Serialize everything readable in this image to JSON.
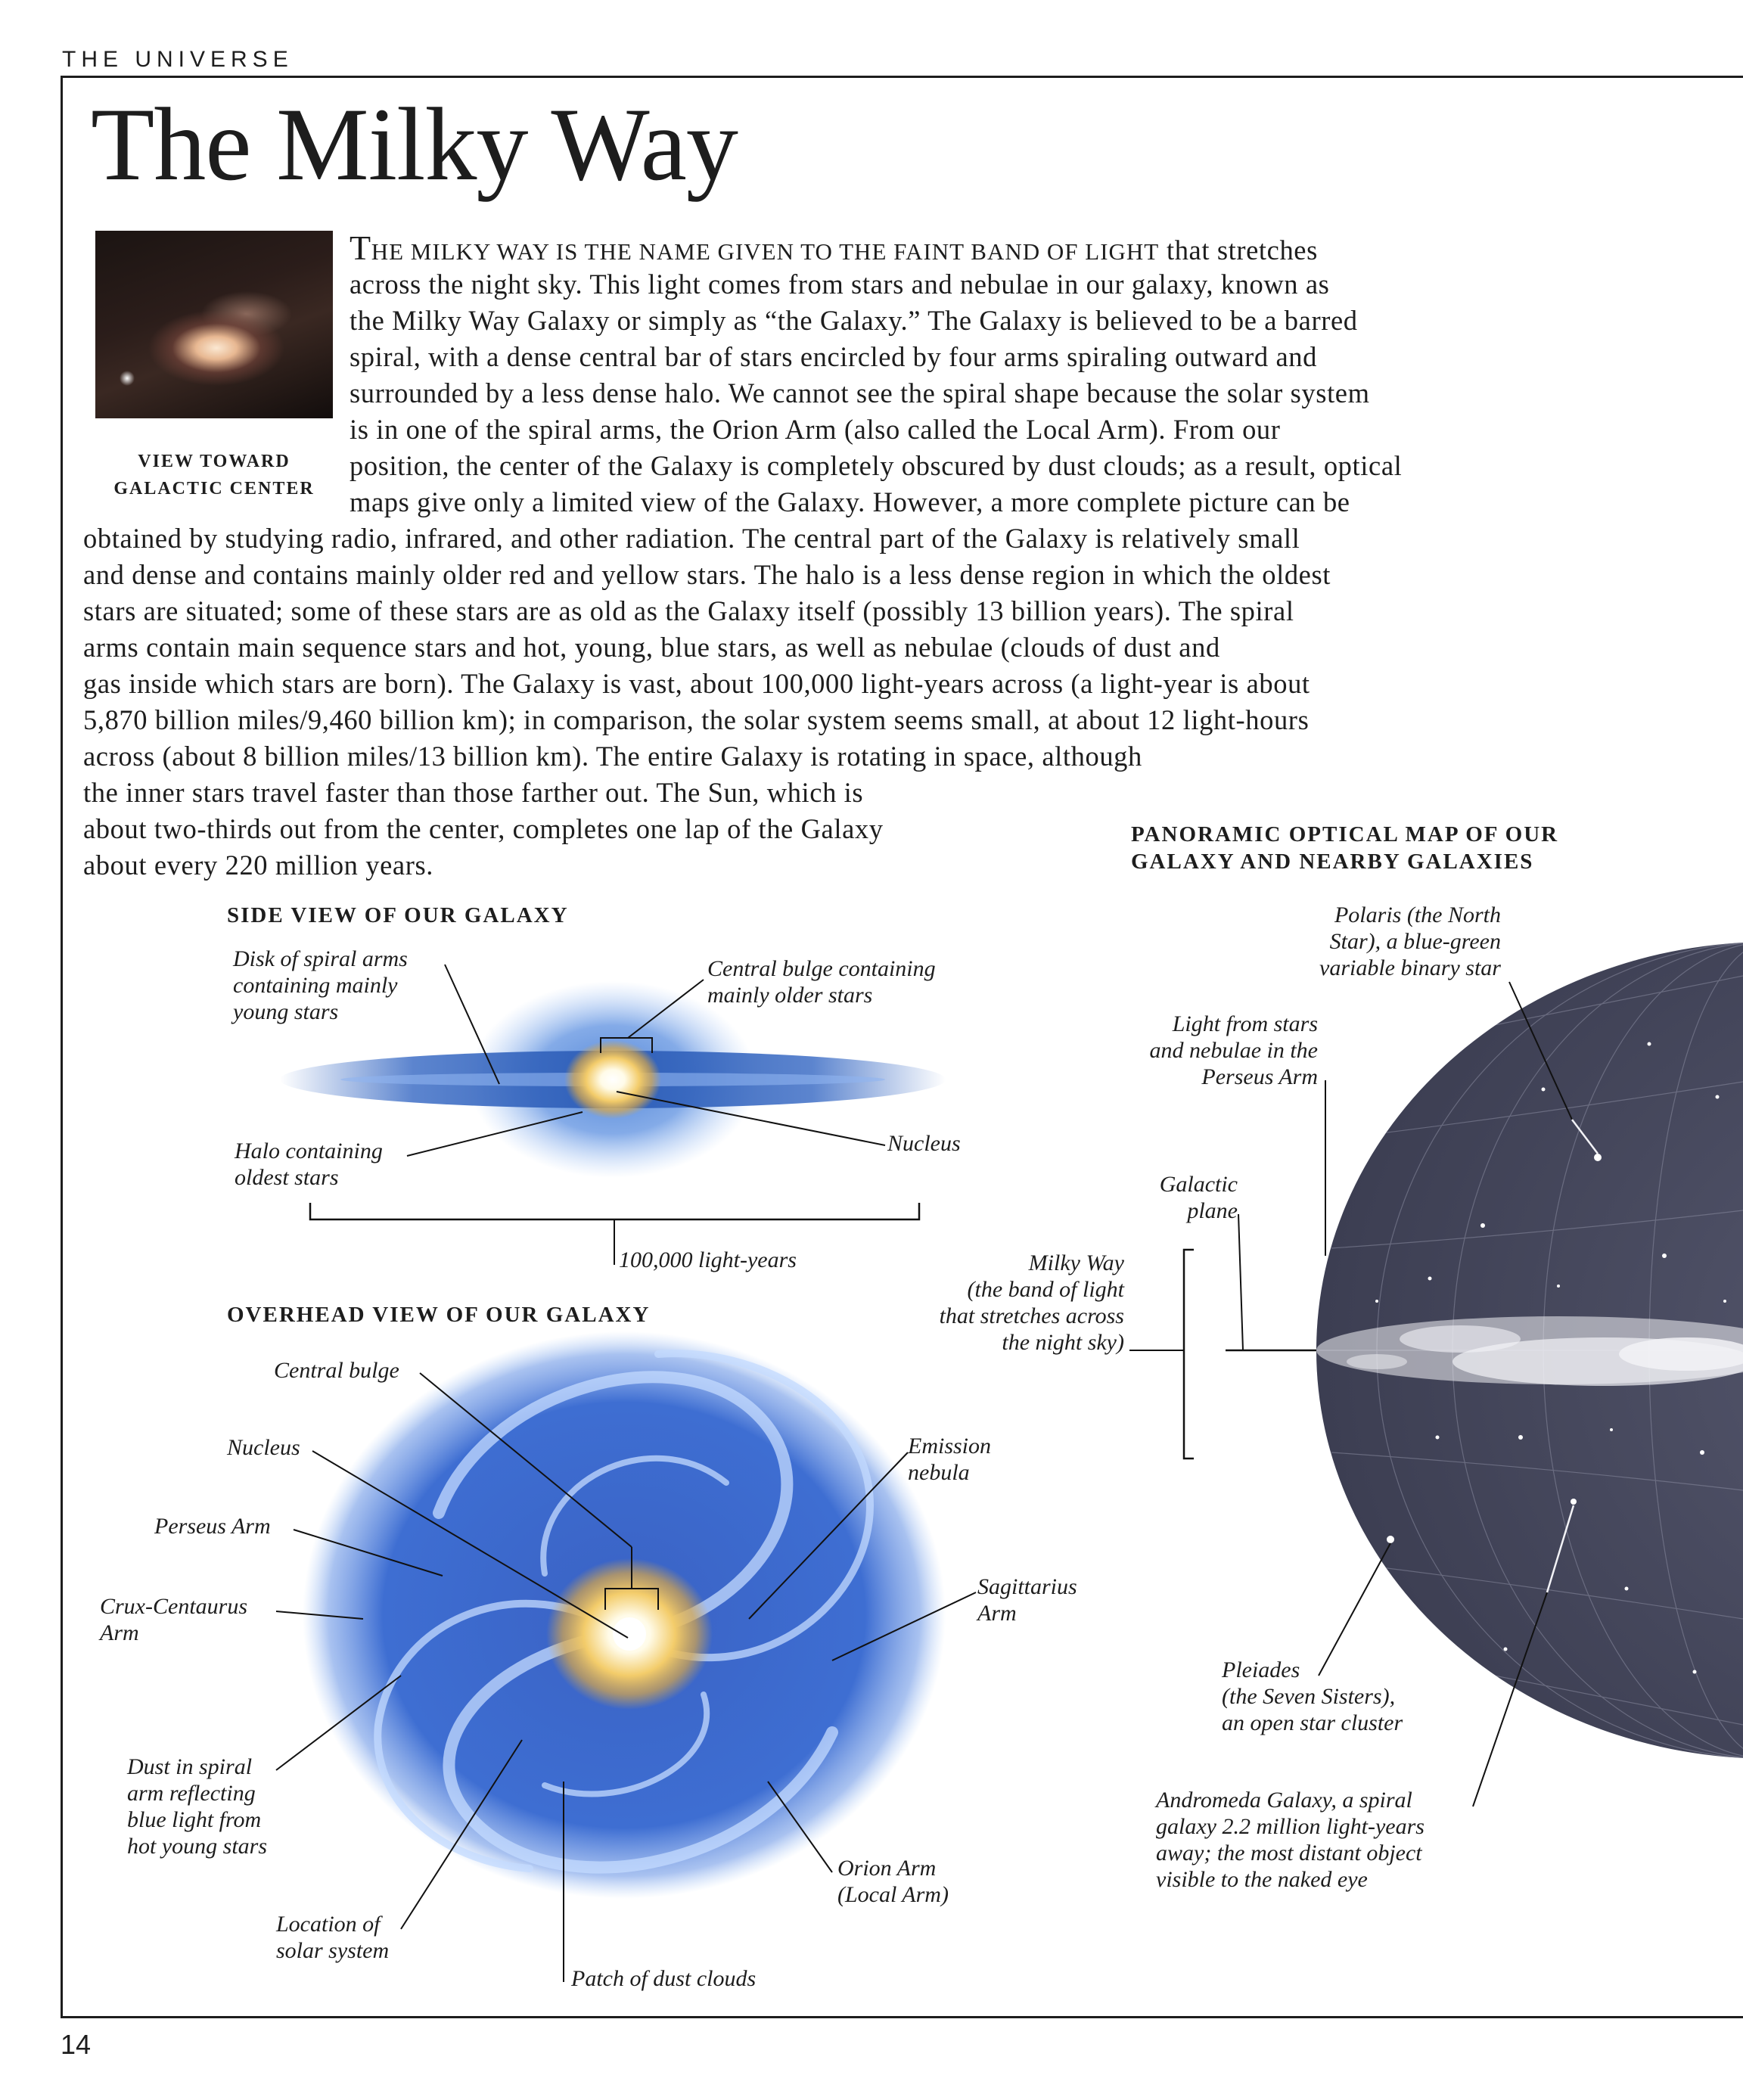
{
  "header": {
    "section": "THE UNIVERSE",
    "page_title": "The Milky Way",
    "page_number": "14"
  },
  "photo": {
    "caption_line1": "VIEW TOWARD",
    "caption_line2": "GALACTIC CENTER"
  },
  "intro": {
    "first_line_smallcaps_lead": "T",
    "first_line_smallcaps": "HE MILKY WAY IS THE NAME GIVEN TO THE FAINT BAND OF LIGHT",
    "first_line_rest": " that stretches",
    "lines": [
      "across the night sky. This light comes from stars and nebulae in our galaxy, known as",
      "the Milky Way Galaxy or simply as “the Galaxy.” The Galaxy is believed to be a barred",
      "spiral, with a dense central bar of stars encircled by four arms spiraling outward and",
      "surrounded by a less dense halo. We cannot see the spiral shape because the solar system",
      "is in one of the spiral arms, the Orion Arm (also called the Local Arm). From our",
      "position, the center of the Galaxy is completely obscured by dust clouds; as a result, optical",
      "maps give only a limited view of the Galaxy. However, a more complete picture can be",
      "obtained by studying radio, infrared, and other radiation. The central part of the Galaxy is relatively small",
      "and dense and contains mainly older red and yellow stars. The halo is a less dense region in which the oldest",
      "stars are situated; some of these stars are as old as the Galaxy itself (possibly 13 billion years). The spiral",
      "arms contain main sequence stars and hot, young, blue stars, as well as nebulae (clouds of dust and",
      "gas inside which stars are born). The Galaxy is vast, about 100,000 light-years across (a light-year is about",
      "5,870 billion miles/9,460 billion km); in comparison, the solar system seems small, at about 12 light-hours",
      "across (about 8 billion miles/13 billion km). The entire Galaxy is rotating in space, although",
      "the inner stars travel faster than those farther out. The Sun, which is",
      "about two-thirds out from the center, completes one lap of the Galaxy",
      "about every 220 million years."
    ]
  },
  "side_view": {
    "heading": "SIDE VIEW OF OUR GALAXY",
    "label_disk": [
      "Disk of  spiral arms",
      "containing mainly",
      "young stars"
    ],
    "label_bulge": [
      "Central bulge containing",
      "mainly older stars"
    ],
    "label_halo": [
      "Halo containing",
      "oldest stars"
    ],
    "label_nucleus": "Nucleus",
    "label_scale": "100,000 light-years"
  },
  "overhead_view": {
    "heading": "OVERHEAD VIEW OF OUR GALAXY",
    "label_central_bulge": "Central bulge",
    "label_nucleus": "Nucleus",
    "label_perseus": "Perseus Arm",
    "label_crux": [
      "Crux-Centaurus",
      "Arm"
    ],
    "label_dust": [
      "Dust in spiral",
      "arm reflecting",
      "blue light from",
      "hot young stars"
    ],
    "label_solar": [
      "Location of",
      "solar system"
    ],
    "label_patch": "Patch of  dust clouds",
    "label_orion": [
      "Orion Arm",
      "(Local Arm)"
    ],
    "label_sagittarius": [
      "Sagittarius",
      "Arm"
    ],
    "label_emission": [
      "Emission",
      "nebula"
    ]
  },
  "panoramic_map": {
    "heading": [
      "PANORAMIC OPTICAL MAP OF OUR",
      "GALAXY AND NEARBY GALAXIES"
    ],
    "label_polaris": [
      "Polaris (the North",
      "Star), a blue-green",
      "variable binary star"
    ],
    "label_perseus_light": [
      "Light from stars",
      "and nebulae in the",
      "Perseus Arm"
    ],
    "label_plane": [
      "Galactic",
      "plane"
    ],
    "label_milkyway": [
      "Milky Way",
      "(the band of  light",
      "that stretches across",
      "the night sky)"
    ],
    "label_pleiades": [
      "Pleiades",
      "(the Seven Sisters),",
      "an open star cluster"
    ],
    "label_andromeda": [
      "Andromeda Galaxy, a spiral",
      "galaxy 2.2 million light-years",
      "away; the most distant object",
      "visible to the naked eye"
    ]
  }
}
